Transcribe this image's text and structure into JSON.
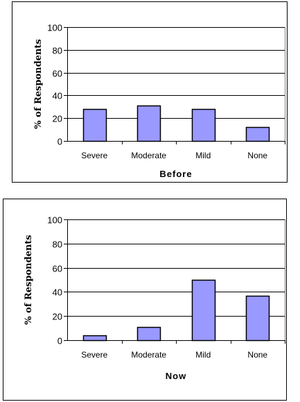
{
  "chart_data": [
    {
      "type": "bar",
      "categories": [
        "Severe",
        "Moderate",
        "Mild",
        "None"
      ],
      "values": [
        28,
        31,
        28,
        12
      ],
      "xlabel": "Before",
      "ylabel": "% of Respondents",
      "ylim": [
        0,
        100
      ],
      "yticks": [
        "0",
        "20",
        "40",
        "60",
        "80",
        "100"
      ],
      "grid": "horizontal",
      "bar_color": "#9999ff"
    },
    {
      "type": "bar",
      "categories": [
        "Severe",
        "Moderate",
        "Mild",
        "None"
      ],
      "values": [
        4,
        11,
        50,
        37
      ],
      "xlabel": "Now",
      "ylabel": "% of Respondents",
      "ylim": [
        0,
        100
      ],
      "yticks": [
        "0",
        "20",
        "40",
        "60",
        "80",
        "100"
      ],
      "grid": "horizontal",
      "bar_color": "#9999ff"
    }
  ]
}
